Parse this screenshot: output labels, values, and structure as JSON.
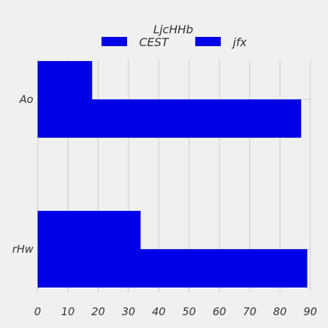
{
  "chart_data": {
    "type": "bar",
    "orientation": "horizontal",
    "title": "",
    "xlabel": "",
    "ylabel": "",
    "categories": [
      "Ao",
      "rHw"
    ],
    "series": [
      {
        "name": "CEST",
        "values": [
          18,
          34
        ],
        "color": "#0000e6"
      },
      {
        "name": "jfx",
        "values": [
          87,
          89
        ],
        "color": "#0000e6"
      }
    ],
    "xlim": [
      0,
      90
    ],
    "xticks": [
      0,
      10,
      20,
      30,
      40,
      50,
      60,
      70,
      80,
      90
    ],
    "grid": true,
    "legend": {
      "title": "LjcHHb",
      "placement": "top-center",
      "columns": 2
    }
  }
}
